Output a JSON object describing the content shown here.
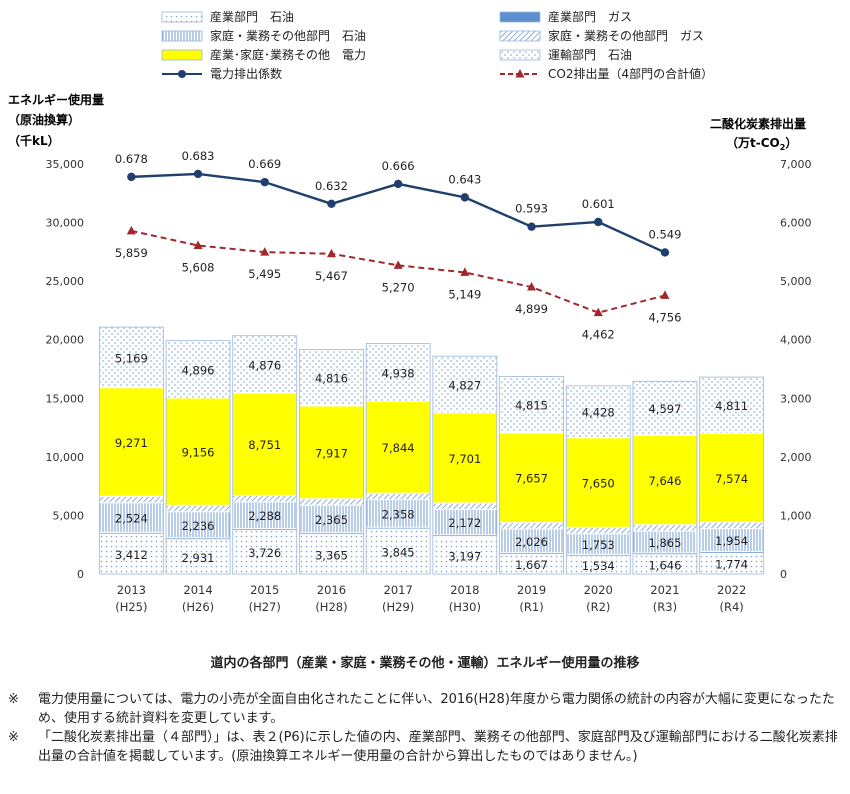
{
  "chart_data": {
    "type": "bar",
    "title": "",
    "categories": [
      "2013",
      "2014",
      "2015",
      "2016",
      "2017",
      "2018",
      "2019",
      "2020",
      "2021",
      "2022"
    ],
    "category_sublabels": [
      "(H25)",
      "(H26)",
      "(H27)",
      "(H28)",
      "(H29)",
      "(H30)",
      "(R1)",
      "(R2)",
      "(R3)",
      "(R4)"
    ],
    "ylabel_left": [
      "エネルギー使用量",
      "（原油換算）",
      "（千kL）"
    ],
    "ylabel_right": [
      "二酸化炭素排出量",
      "（万t-CO2）"
    ],
    "ylim_left": [
      0,
      35000
    ],
    "ylim_right": [
      0,
      7000
    ],
    "yticks_left": [
      "0",
      "5,000",
      "10,000",
      "15,000",
      "20,000",
      "25,000",
      "30,000",
      "35,000"
    ],
    "yticks_right": [
      "0",
      "1,000",
      "2,000",
      "3,000",
      "4,000",
      "5,000",
      "6,000",
      "7,000"
    ],
    "stack_series": [
      {
        "name": "産業部門　石油",
        "values": [
          3412,
          2931,
          3726,
          3365,
          3845,
          3197,
          1667,
          1534,
          1646,
          1774
        ],
        "labels": [
          "3,412",
          "2,931",
          "3,726",
          "3,365",
          "3,845",
          "3,197",
          "1,667",
          "1,534",
          "1,646",
          "1,774"
        ],
        "color": "#bcd3ec",
        "pattern": "dots"
      },
      {
        "name": "産業部門　ガス",
        "values": [
          150,
          150,
          150,
          150,
          150,
          150,
          150,
          150,
          150,
          150
        ],
        "color": "#5b8fd0",
        "pattern": "solid"
      },
      {
        "name": "家庭・業務その他部門　石油",
        "values": [
          2524,
          2236,
          2288,
          2365,
          2358,
          2172,
          2026,
          1753,
          1865,
          1954
        ],
        "labels": [
          "2,524",
          "2,236",
          "2,288",
          "2,365",
          "2,358",
          "2,172",
          "2,026",
          "1,753",
          "1,865",
          "1,954"
        ],
        "color": "#5b8fd0",
        "pattern": "vlines"
      },
      {
        "name": "家庭・業務その他部門　ガス",
        "values": [
          550,
          550,
          550,
          550,
          550,
          550,
          550,
          550,
          550,
          550
        ],
        "color": "#5b8fd0",
        "pattern": "diag"
      },
      {
        "name": "産業･家庭･業務その他　電力",
        "values": [
          9271,
          9156,
          8751,
          7917,
          7844,
          7701,
          7657,
          7650,
          7646,
          7574
        ],
        "labels": [
          "9,271",
          "9,156",
          "8,751",
          "7,917",
          "7,844",
          "7,701",
          "7,657",
          "7,650",
          "7,646",
          "7,574"
        ],
        "color": "#ffff00",
        "pattern": "solid"
      },
      {
        "name": "運輸部門　石油",
        "values": [
          5169,
          4896,
          4876,
          4816,
          4938,
          4827,
          4815,
          4428,
          4597,
          4811
        ],
        "labels": [
          "5,169",
          "4,896",
          "4,876",
          "4,816",
          "4,938",
          "4,827",
          "4,815",
          "4,428",
          "4,597",
          "4,811"
        ],
        "color": "#8fb4e0",
        "pattern": "speckle"
      }
    ],
    "line_series": [
      {
        "name": "電力排出係数",
        "axis": "left_scaled",
        "values": [
          0.678,
          0.683,
          0.669,
          0.632,
          0.666,
          0.643,
          0.593,
          0.601,
          0.549
        ],
        "labels": [
          "0.678",
          "0.683",
          "0.669",
          "0.632",
          "0.666",
          "0.643",
          "0.593",
          "0.601",
          "0.549"
        ],
        "plot_values": [
          33900,
          34150,
          33450,
          31600,
          33300,
          32150,
          29650,
          30050,
          27450
        ],
        "color": "#1f3f6e",
        "style": "solid",
        "marker": "circle"
      },
      {
        "name": "CO2排出量（4部門の合計値）",
        "axis": "right",
        "values": [
          5859,
          5608,
          5495,
          5467,
          5270,
          5149,
          4899,
          4462,
          4756
        ],
        "labels": [
          "5,859",
          "5,608",
          "5,495",
          "5,467",
          "5,270",
          "5,149",
          "4,899",
          "4,462",
          "4,756"
        ],
        "color": "#a0282c",
        "style": "dashed",
        "marker": "triangle"
      }
    ],
    "legend_placement": "top",
    "grid": false
  },
  "caption": "道内の各部門（産業・家庭・業務その他・運輸）エネルギー使用量の推移",
  "notes": [
    {
      "mark": "※",
      "text": "電力使用量については、電力の小売が全面自由化されたことに伴い、2016(H28)年度から電力関係の統計の内容が大幅に変更になったため、使用する統計資料を変更しています。"
    },
    {
      "mark": "※",
      "text": "「二酸化炭素排出量（４部門）」は、表２(P6)に示した値の内、産業部門、業務その他部門、家庭部門及び運輸部門における二酸化炭素排出量の合計値を掲載しています。(原油換算エネルギー使用量の合計から算出したものではありません。)"
    }
  ]
}
